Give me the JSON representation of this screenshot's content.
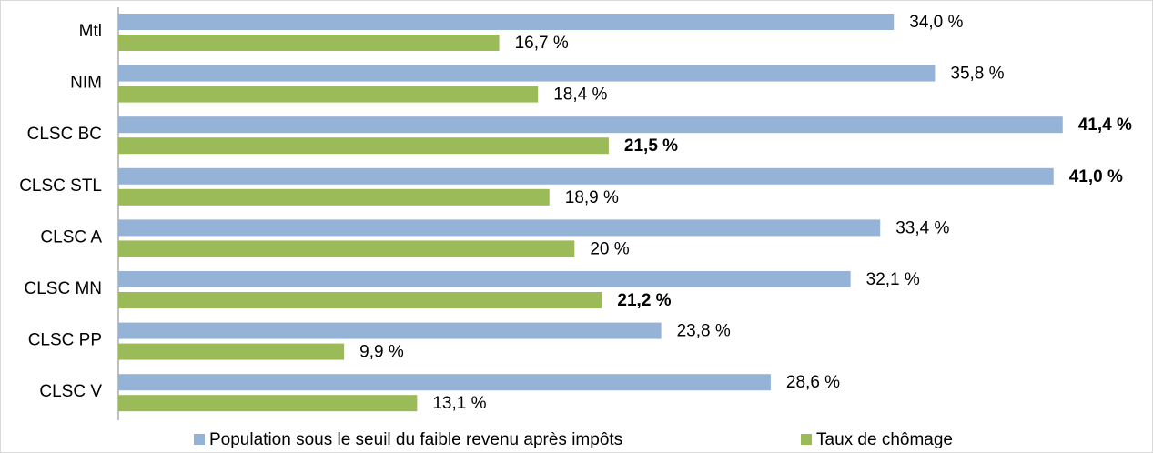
{
  "chart_data": {
    "type": "barh",
    "categories": [
      "Mtl",
      "NIM",
      "CLSC BC",
      "CLSC STL",
      "CLSC A",
      "CLSC MN",
      "CLSC PP",
      "CLSC V"
    ],
    "series": [
      {
        "name": "Population sous le seuil du faible revenu après impôts",
        "color": "#95b3d7",
        "values": [
          34.0,
          35.8,
          41.4,
          41.0,
          33.4,
          32.1,
          23.8,
          28.6
        ],
        "value_labels": [
          "34,0 %",
          "35,8 %",
          "41,4 %",
          "41,0 %",
          "33,4 %",
          "32,1 %",
          "23,8 %",
          "28,6 %"
        ],
        "bold": [
          false,
          false,
          true,
          true,
          false,
          false,
          false,
          false
        ]
      },
      {
        "name": "Taux de chômage",
        "color": "#9bbb59",
        "values": [
          16.7,
          18.4,
          21.5,
          18.9,
          20,
          21.2,
          9.9,
          13.1
        ],
        "value_labels": [
          "16,7 %",
          "18,4 %",
          "21,5 %",
          "18,9 %",
          "20 %",
          "21,2 %",
          "9,9 %",
          "13,1 %"
        ],
        "bold": [
          false,
          false,
          true,
          false,
          false,
          true,
          false,
          false
        ]
      }
    ],
    "xlim": [
      0,
      45
    ],
    "legend": "bottom"
  }
}
